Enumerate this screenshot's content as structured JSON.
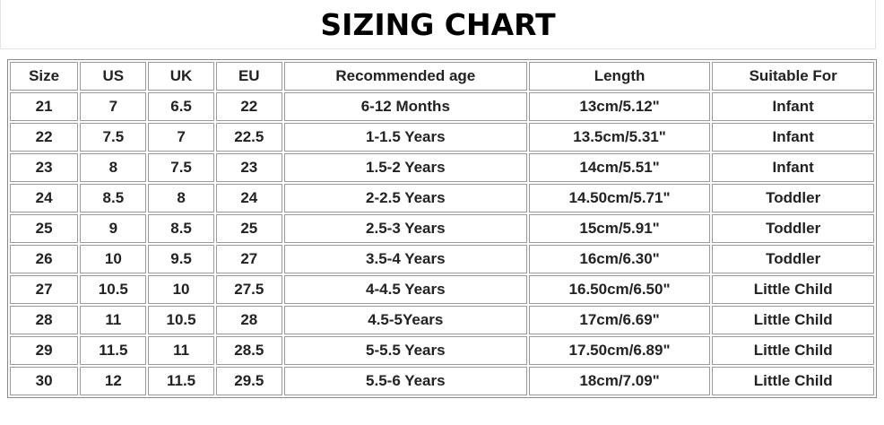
{
  "title": "SIZING CHART",
  "table": {
    "header": [
      "Size",
      "US",
      "UK",
      "EU",
      "Recommended age",
      "Length",
      "Suitable For"
    ],
    "rows": [
      [
        "21",
        "7",
        "6.5",
        "22",
        "6-12 Months",
        "13cm/5.12\"",
        "Infant"
      ],
      [
        "22",
        "7.5",
        "7",
        "22.5",
        "1-1.5 Years",
        "13.5cm/5.31\"",
        "Infant"
      ],
      [
        "23",
        "8",
        "7.5",
        "23",
        "1.5-2 Years",
        "14cm/5.51\"",
        "Infant"
      ],
      [
        "24",
        "8.5",
        "8",
        "24",
        "2-2.5 Years",
        "14.50cm/5.71\"",
        "Toddler"
      ],
      [
        "25",
        "9",
        "8.5",
        "25",
        "2.5-3 Years",
        "15cm/5.91\"",
        "Toddler"
      ],
      [
        "26",
        "10",
        "9.5",
        "27",
        "3.5-4 Years",
        "16cm/6.30\"",
        "Toddler"
      ],
      [
        "27",
        "10.5",
        "10",
        "27.5",
        "4-4.5 Years",
        "16.50cm/6.50\"",
        "Little Child"
      ],
      [
        "28",
        "11",
        "10.5",
        "28",
        "4.5-5Years",
        "17cm/6.69\"",
        "Little Child"
      ],
      [
        "29",
        "11.5",
        "11",
        "28.5",
        "5-5.5 Years",
        "17.50cm/6.89\"",
        "Little Child"
      ],
      [
        "30",
        "12",
        "11.5",
        "29.5",
        "5.5-6 Years",
        "18cm/7.09\"",
        "Little Child"
      ]
    ]
  }
}
